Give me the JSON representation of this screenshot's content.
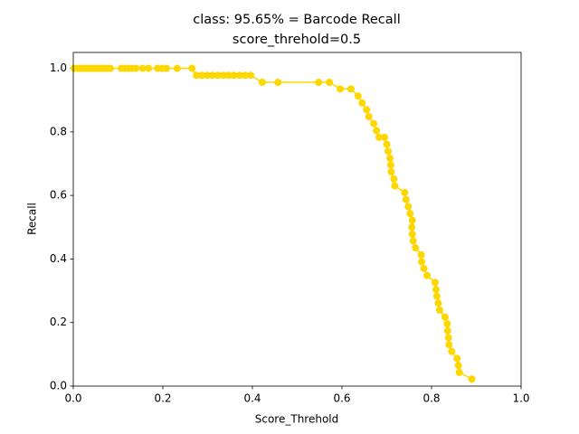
{
  "chart_data": {
    "type": "line",
    "title": "class: 95.65% = Barcode Recall",
    "subtitle": "score_threhold=0.5",
    "x_label": "Score_Threhold",
    "y_label": "Recall",
    "x": [
      0.002,
      0.01,
      0.016,
      0.022,
      0.028,
      0.034,
      0.04,
      0.046,
      0.052,
      0.058,
      0.064,
      0.07,
      0.076,
      0.083,
      0.107,
      0.115,
      0.123,
      0.131,
      0.14,
      0.155,
      0.168,
      0.188,
      0.198,
      0.208,
      0.232,
      0.265,
      0.275,
      0.287,
      0.299,
      0.311,
      0.323,
      0.335,
      0.347,
      0.359,
      0.372,
      0.384,
      0.396,
      0.422,
      0.457,
      0.548,
      0.572,
      0.596,
      0.62,
      0.636,
      0.645,
      0.655,
      0.66,
      0.671,
      0.677,
      0.683,
      0.695,
      0.7,
      0.703,
      0.707,
      0.709,
      0.71,
      0.716,
      0.718,
      0.74,
      0.743,
      0.748,
      0.752,
      0.757,
      0.756,
      0.757,
      0.759,
      0.764,
      0.777,
      0.778,
      0.783,
      0.79,
      0.808,
      0.81,
      0.812,
      0.815,
      0.818,
      0.83,
      0.835,
      0.836,
      0.838,
      0.839,
      0.845,
      0.857,
      0.86,
      0.862,
      0.89
    ],
    "series": [
      {
        "name": "Recall",
        "color": "#ffd700",
        "values": [
          1,
          1,
          1,
          1,
          1,
          1,
          1,
          1,
          1,
          1,
          1,
          1,
          1,
          1,
          1,
          1,
          1,
          1,
          1,
          1,
          1,
          1,
          1,
          1,
          1,
          1,
          0.978,
          0.978,
          0.978,
          0.978,
          0.978,
          0.978,
          0.978,
          0.978,
          0.978,
          0.978,
          0.978,
          0.956,
          0.956,
          0.956,
          0.956,
          0.935,
          0.935,
          0.913,
          0.891,
          0.87,
          0.848,
          0.826,
          0.804,
          0.783,
          0.783,
          0.761,
          0.739,
          0.717,
          0.696,
          0.674,
          0.652,
          0.63,
          0.609,
          0.587,
          0.565,
          0.543,
          0.522,
          0.5,
          0.478,
          0.457,
          0.435,
          0.413,
          0.391,
          0.37,
          0.348,
          0.326,
          0.304,
          0.283,
          0.261,
          0.239,
          0.217,
          0.196,
          0.174,
          0.152,
          0.13,
          0.109,
          0.087,
          0.065,
          0.043,
          0.022
        ]
      }
    ],
    "xlim": [
      0,
      1
    ],
    "ylim": [
      0,
      1.05
    ],
    "xticks": [
      {
        "value": 0,
        "label": "0.0"
      },
      {
        "value": 0.2,
        "label": "0.2"
      },
      {
        "value": 0.4,
        "label": "0.4"
      },
      {
        "value": 0.6,
        "label": "0.6"
      },
      {
        "value": 0.8,
        "label": "0.8"
      },
      {
        "value": 1,
        "label": "1.0"
      }
    ],
    "yticks": [
      {
        "value": 0,
        "label": "0.0"
      },
      {
        "value": 0.2,
        "label": "0.2"
      },
      {
        "value": 0.4,
        "label": "0.4"
      },
      {
        "value": 0.6,
        "label": "0.6"
      },
      {
        "value": 0.8,
        "label": "0.8"
      },
      {
        "value": 1,
        "label": "1.0"
      }
    ]
  }
}
